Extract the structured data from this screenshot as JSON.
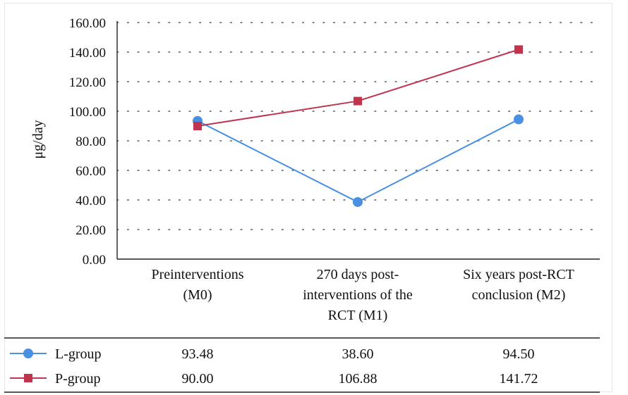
{
  "chart_data": {
    "type": "line",
    "ylabel": "μg/day",
    "ylim": [
      0,
      160
    ],
    "yticks": [
      "0.00",
      "20.00",
      "40.00",
      "60.00",
      "80.00",
      "100.00",
      "120.00",
      "140.00",
      "160.00"
    ],
    "categories": [
      [
        "Preinterventions",
        "(M0)"
      ],
      [
        "270 days post-",
        "interventions of the",
        "RCT (M1)"
      ],
      [
        "Six years post-RCT",
        "conclusion (M2)"
      ]
    ],
    "grid": true,
    "series": [
      {
        "name": "L-group",
        "values": [
          93.48,
          38.6,
          94.5
        ],
        "labels": [
          "93.48",
          "38.60",
          "94.50"
        ],
        "color": "#4a90e2",
        "marker": "circle"
      },
      {
        "name": "P-group",
        "values": [
          90.0,
          106.88,
          141.72
        ],
        "labels": [
          "90.00",
          "106.88",
          "141.72"
        ],
        "color": "#c0344d",
        "marker": "square"
      }
    ],
    "legend": "data table below chart"
  }
}
